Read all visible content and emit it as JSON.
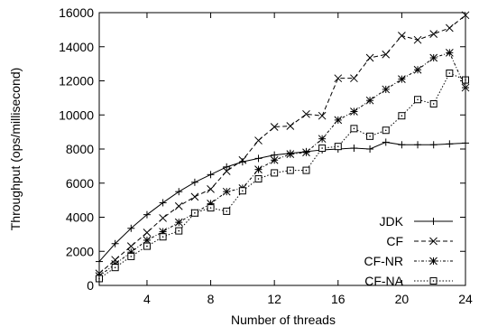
{
  "chart_data": {
    "type": "line",
    "xlabel": "Number of threads",
    "ylabel": "Throughput (ops/millisecond)",
    "xlim": [
      1,
      24
    ],
    "ylim": [
      0,
      16000
    ],
    "xticks": [
      4,
      8,
      12,
      16,
      20,
      24
    ],
    "yticks": [
      0,
      2000,
      4000,
      6000,
      8000,
      10000,
      12000,
      14000,
      16000
    ],
    "grid": false,
    "legend_position": "bottom-right",
    "series": [
      {
        "name": "JDK",
        "marker": "plus",
        "dash": "solid",
        "x": [
          1,
          2,
          3,
          4,
          5,
          6,
          7,
          8,
          9,
          10,
          11,
          12,
          13,
          14,
          15,
          16,
          17,
          18,
          19,
          20,
          21,
          22,
          23,
          24
        ],
        "y": [
          1400,
          2450,
          3350,
          4150,
          4850,
          5500,
          6050,
          6500,
          6950,
          7250,
          7450,
          7650,
          7750,
          7850,
          7950,
          8000,
          8050,
          8000,
          8400,
          8250,
          8250,
          8250,
          8300,
          8350
        ]
      },
      {
        "name": "CF",
        "marker": "cross",
        "dash": "dashed",
        "x": [
          1,
          2,
          3,
          4,
          5,
          6,
          7,
          8,
          9,
          10,
          11,
          12,
          13,
          14,
          15,
          16,
          17,
          18,
          19,
          20,
          21,
          22,
          23,
          24
        ],
        "y": [
          700,
          1500,
          2300,
          3100,
          3950,
          4650,
          5200,
          5650,
          6700,
          7350,
          8500,
          9300,
          9350,
          10050,
          9950,
          12150,
          12150,
          13350,
          13550,
          14650,
          14400,
          14750,
          15100,
          15850
        ]
      },
      {
        "name": "CF-NR",
        "marker": "star",
        "dash": "dotdash",
        "x": [
          1,
          2,
          3,
          4,
          5,
          6,
          7,
          8,
          9,
          10,
          11,
          12,
          13,
          14,
          15,
          16,
          17,
          18,
          19,
          20,
          21,
          22,
          23,
          24
        ],
        "y": [
          550,
          1250,
          1950,
          2650,
          3150,
          3700,
          4250,
          4800,
          5500,
          5700,
          6800,
          7350,
          7700,
          7800,
          8600,
          9700,
          10200,
          10850,
          11500,
          12100,
          12650,
          13350,
          13650,
          11600
        ]
      },
      {
        "name": "CF-NA",
        "marker": "square",
        "dash": "dotted",
        "x": [
          1,
          2,
          3,
          4,
          5,
          6,
          7,
          8,
          9,
          10,
          11,
          12,
          13,
          14,
          15,
          16,
          17,
          18,
          19,
          20,
          21,
          22,
          23,
          24
        ],
        "y": [
          400,
          1050,
          1700,
          2300,
          2850,
          3200,
          4250,
          4550,
          4350,
          5550,
          6250,
          6600,
          6750,
          6750,
          8050,
          8150,
          9200,
          8750,
          9100,
          9950,
          10900,
          10650,
          12450,
          12050
        ]
      }
    ]
  }
}
